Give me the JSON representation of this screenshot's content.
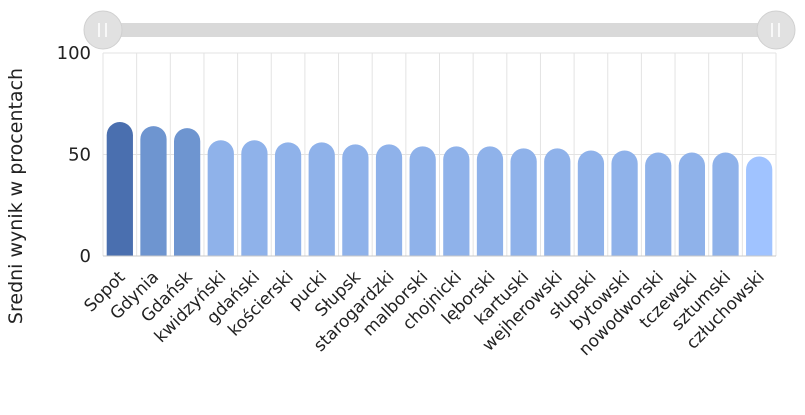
{
  "chart_data": {
    "type": "bar",
    "ylabel": "Sredni wynik w procentach",
    "xlabel": "",
    "title": "",
    "ylim": [
      0,
      100
    ],
    "yticks": [
      0,
      50,
      100
    ],
    "grid": true,
    "categories": [
      "Sopot",
      "Gdynia",
      "Gdańsk",
      "kwidzyński",
      "gdański",
      "kościerski",
      "pucki",
      "Słupsk",
      "starogardzki",
      "malborski",
      "chojnicki",
      "lęborski",
      "kartuski",
      "wejherowski",
      "słupski",
      "bytowski",
      "nowodworski",
      "tczewski",
      "sztumski",
      "człuchowski"
    ],
    "values": [
      66,
      64,
      63,
      57,
      57,
      56,
      56,
      55,
      55,
      54,
      54,
      54,
      53,
      53,
      52,
      52,
      51,
      51,
      51,
      49
    ],
    "colors": [
      "#4a6faf",
      "#6e95d0",
      "#6e95d0",
      "#8fb2ea",
      "#8fb2ea",
      "#8fb2ea",
      "#8fb2ea",
      "#8fb2ea",
      "#8fb2ea",
      "#8fb2ea",
      "#8fb2ea",
      "#8fb2ea",
      "#8fb2ea",
      "#8fb2ea",
      "#8fb2ea",
      "#8fb2ea",
      "#8fb2ea",
      "#8fb2ea",
      "#8fb2ea",
      "#a0c3ff"
    ]
  },
  "range_slider": {
    "start": 0,
    "end": 1
  }
}
